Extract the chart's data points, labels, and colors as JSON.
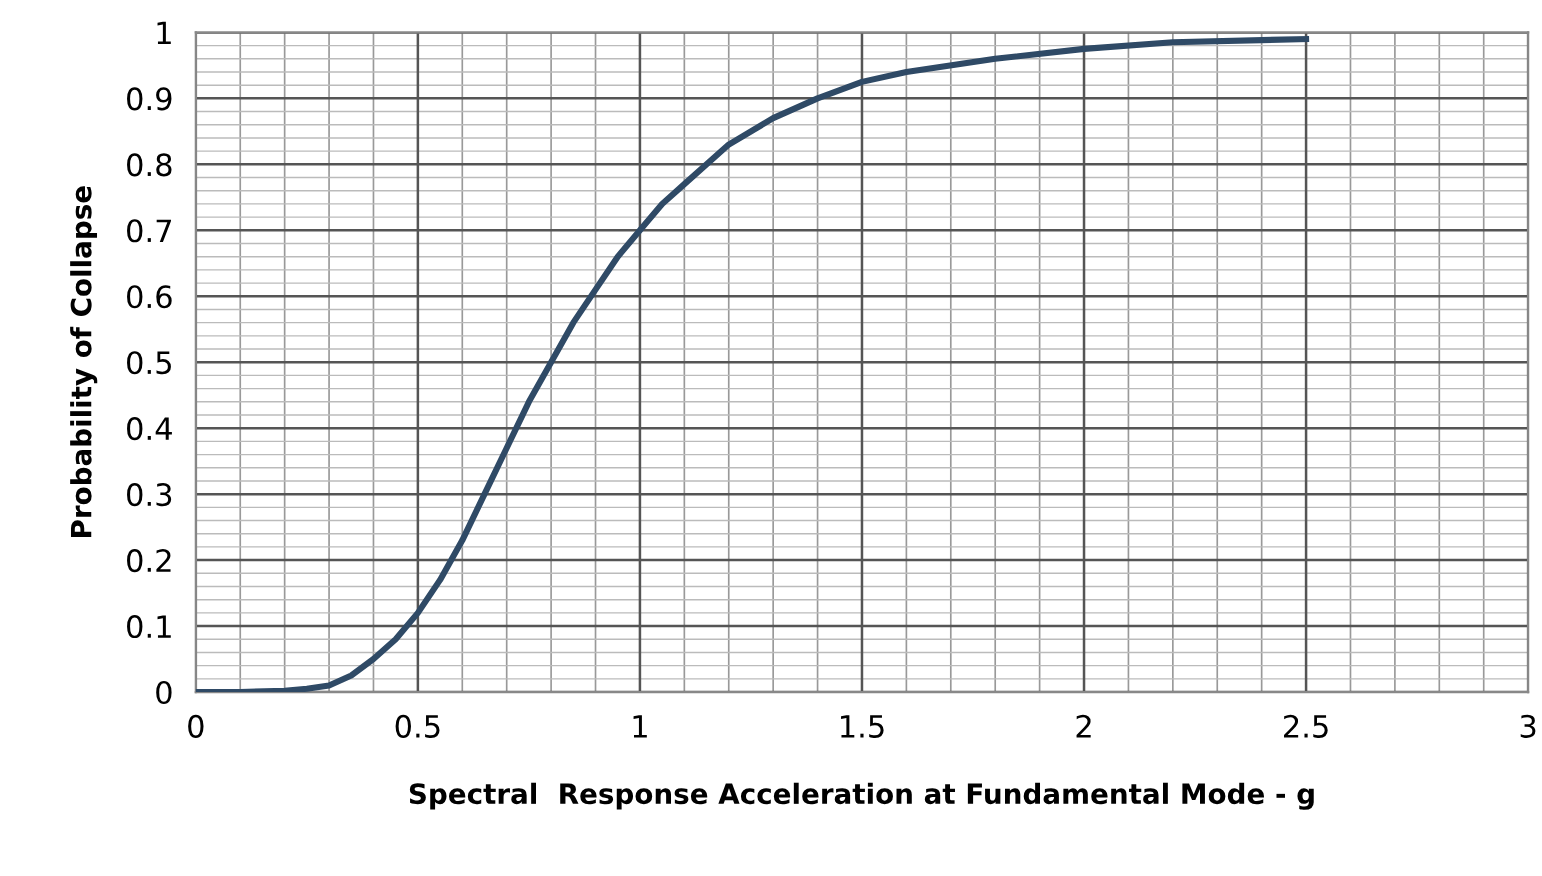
{
  "chart_data": {
    "type": "line",
    "xlabel": "Spectral  Response Acceleration at Fundamental Mode - g",
    "ylabel": "Probability of Collapse",
    "x": [
      0,
      0.1,
      0.2,
      0.25,
      0.3,
      0.35,
      0.4,
      0.45,
      0.5,
      0.55,
      0.6,
      0.65,
      0.7,
      0.75,
      0.8,
      0.85,
      0.9,
      0.95,
      1.0,
      1.05,
      1.1,
      1.2,
      1.3,
      1.4,
      1.5,
      1.6,
      1.8,
      2.0,
      2.2,
      2.5
    ],
    "series": [
      {
        "color": "#2f4a66",
        "values": [
          0,
          0,
          0.002,
          0.005,
          0.01,
          0.025,
          0.05,
          0.08,
          0.12,
          0.17,
          0.23,
          0.3,
          0.37,
          0.44,
          0.5,
          0.56,
          0.61,
          0.66,
          0.7,
          0.74,
          0.77,
          0.83,
          0.87,
          0.9,
          0.925,
          0.94,
          0.96,
          0.975,
          0.985,
          0.99
        ]
      }
    ],
    "xlim": [
      0,
      3
    ],
    "xticks": [
      0,
      0.5,
      1,
      1.5,
      2,
      2.5,
      3
    ],
    "ylim": [
      0,
      1
    ],
    "yticks": [
      0,
      0.1,
      0.2,
      0.3,
      0.4,
      0.5,
      0.6,
      0.7,
      0.8,
      0.9,
      1
    ],
    "grid": true,
    "marker": "none",
    "line_style": "solid"
  }
}
